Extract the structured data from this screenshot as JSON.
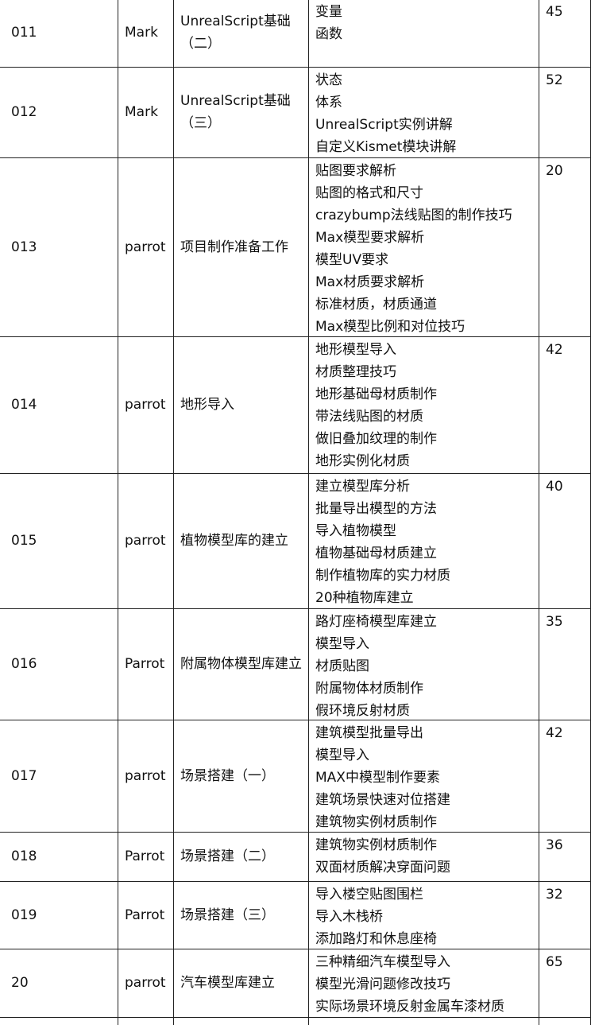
{
  "table": {
    "rows": [
      {
        "id": "011",
        "author": "Mark",
        "title": "UnrealScript基础（二）",
        "topics": [
          "变量",
          "函数"
        ],
        "count": "45"
      },
      {
        "id": "012",
        "author": "Mark",
        "title": "UnrealScript基础（三）",
        "topics": [
          "状态",
          "体系",
          "UnrealScript实例讲解",
          "自定义Kismet模块讲解"
        ],
        "count": "52"
      },
      {
        "id": "013",
        "author": "parrot",
        "title": "项目制作准备工作",
        "topics": [
          "贴图要求解析",
          "贴图的格式和尺寸",
          "crazybump法线贴图的制作技巧",
          "Max模型要求解析",
          "模型UV要求",
          "Max材质要求解析",
          "标准材质，材质通道",
          "Max模型比例和对位技巧"
        ],
        "count": "20"
      },
      {
        "id": "014",
        "author": "parrot",
        "title": "地形导入",
        "topics": [
          "地形模型导入",
          "材质整理技巧",
          "地形基础母材质制作",
          "带法线贴图的材质",
          "做旧叠加纹理的制作",
          "地形实例化材质"
        ],
        "count": "42"
      },
      {
        "id": "015",
        "author": "parrot",
        "title": "植物模型库的建立",
        "topics": [
          "建立模型库分析",
          "批量导出模型的方法",
          "导入植物模型",
          "植物基础母材质建立",
          "制作植物库的实力材质",
          "20种植物库建立"
        ],
        "count": "40"
      },
      {
        "id": "016",
        "author": "Parrot",
        "title": "附属物体模型库建立",
        "topics": [
          "路灯座椅模型库建立",
          "模型导入",
          "材质贴图",
          "附属物体材质制作",
          "假环境反射材质"
        ],
        "count": "35"
      },
      {
        "id": "017",
        "author": "parrot",
        "title": "场景搭建（一）",
        "topics": [
          "建筑模型批量导出",
          "模型导入",
          "MAX中模型制作要素",
          "建筑场景快速对位搭建",
          "建筑物实例材质制作"
        ],
        "count": "42"
      },
      {
        "id": "018",
        "author": "Parrot",
        "title": "场景搭建（二）",
        "topics": [
          "建筑物实例材质制作",
          "双面材质解决穿面问题"
        ],
        "count": "36"
      },
      {
        "id": "019",
        "author": "Parrot",
        "title": "场景搭建（三）",
        "topics": [
          "导入楼空贴图围栏",
          "导入木栈桥",
          "添加路灯和休息座椅"
        ],
        "count": "32"
      },
      {
        "id": "20",
        "author": "parrot",
        "title": "汽车模型库建立",
        "topics": [
          "三种精细汽车模型导入",
          "模型光滑问题修改技巧",
          "实际场景环境反射金属车漆材质"
        ],
        "count": "65"
      }
    ]
  }
}
